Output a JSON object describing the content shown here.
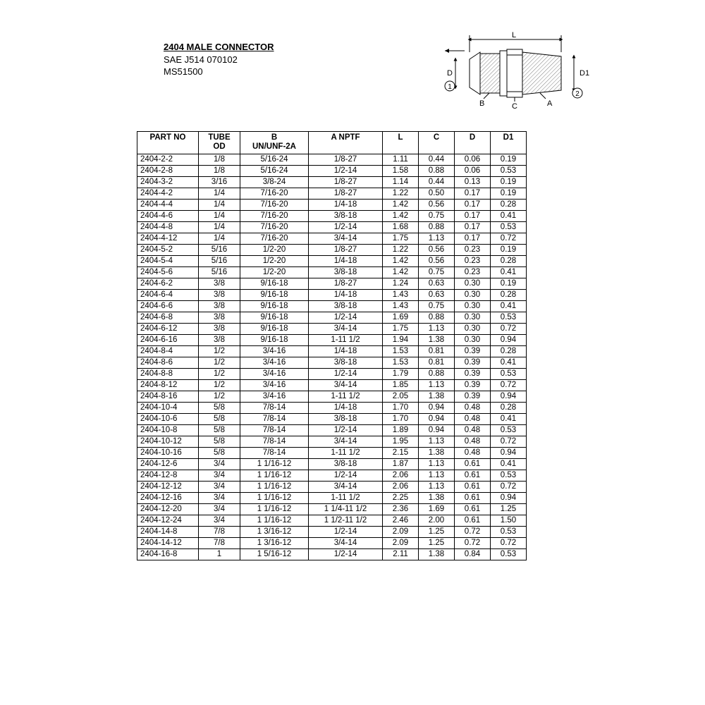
{
  "header": {
    "title": "2404 MALE CONNECTOR",
    "line2": "SAE J514 070102",
    "line3": "MS51500"
  },
  "diagram": {
    "labels": {
      "L": "L",
      "D": "D",
      "D1": "D1",
      "one": "1",
      "two": "2",
      "A": "A",
      "B": "B",
      "C": "C"
    },
    "stroke": "#000000",
    "hatch": "#808080"
  },
  "table": {
    "columns": [
      "PART NO",
      "TUBE\nOD",
      "B\nUN/UNF-2A",
      "A NPTF",
      "L",
      "C",
      "D",
      "D1"
    ],
    "col_align": [
      "left",
      "center",
      "center",
      "center",
      "center",
      "center",
      "center",
      "center"
    ],
    "rows": [
      [
        "2404-2-2",
        "1/8",
        "5/16-24",
        "1/8-27",
        "1.11",
        "0.44",
        "0.06",
        "0.19"
      ],
      [
        "2404-2-8",
        "1/8",
        "5/16-24",
        "1/2-14",
        "1.58",
        "0.88",
        "0.06",
        "0.53"
      ],
      [
        "2404-3-2",
        "3/16",
        "3/8-24",
        "1/8-27",
        "1.14",
        "0.44",
        "0.13",
        "0.19"
      ],
      [
        "2404-4-2",
        "1/4",
        "7/16-20",
        "1/8-27",
        "1.22",
        "0.50",
        "0.17",
        "0.19"
      ],
      [
        "2404-4-4",
        "1/4",
        "7/16-20",
        "1/4-18",
        "1.42",
        "0.56",
        "0.17",
        "0.28"
      ],
      [
        "2404-4-6",
        "1/4",
        "7/16-20",
        "3/8-18",
        "1.42",
        "0.75",
        "0.17",
        "0.41"
      ],
      [
        "2404-4-8",
        "1/4",
        "7/16-20",
        "1/2-14",
        "1.68",
        "0.88",
        "0.17",
        "0.53"
      ],
      [
        "2404-4-12",
        "1/4",
        "7/16-20",
        "3/4-14",
        "1.75",
        "1.13",
        "0.17",
        "0.72"
      ],
      [
        "2404-5-2",
        "5/16",
        "1/2-20",
        "1/8-27",
        "1.22",
        "0.56",
        "0.23",
        "0.19"
      ],
      [
        "2404-5-4",
        "5/16",
        "1/2-20",
        "1/4-18",
        "1.42",
        "0.56",
        "0.23",
        "0.28"
      ],
      [
        "2404-5-6",
        "5/16",
        "1/2-20",
        "3/8-18",
        "1.42",
        "0.75",
        "0.23",
        "0.41"
      ],
      [
        "2404-6-2",
        "3/8",
        "9/16-18",
        "1/8-27",
        "1.24",
        "0.63",
        "0.30",
        "0.19"
      ],
      [
        "2404-6-4",
        "3/8",
        "9/16-18",
        "1/4-18",
        "1.43",
        "0.63",
        "0.30",
        "0.28"
      ],
      [
        "2404-6-6",
        "3/8",
        "9/16-18",
        "3/8-18",
        "1.43",
        "0.75",
        "0.30",
        "0.41"
      ],
      [
        "2404-6-8",
        "3/8",
        "9/16-18",
        "1/2-14",
        "1.69",
        "0.88",
        "0.30",
        "0.53"
      ],
      [
        "2404-6-12",
        "3/8",
        "9/16-18",
        "3/4-14",
        "1.75",
        "1.13",
        "0.30",
        "0.72"
      ],
      [
        "2404-6-16",
        "3/8",
        "9/16-18",
        "1-11 1/2",
        "1.94",
        "1.38",
        "0.30",
        "0.94"
      ],
      [
        "2404-8-4",
        "1/2",
        "3/4-16",
        "1/4-18",
        "1.53",
        "0.81",
        "0.39",
        "0.28"
      ],
      [
        "2404-8-6",
        "1/2",
        "3/4-16",
        "3/8-18",
        "1.53",
        "0.81",
        "0.39",
        "0.41"
      ],
      [
        "2404-8-8",
        "1/2",
        "3/4-16",
        "1/2-14",
        "1.79",
        "0.88",
        "0.39",
        "0.53"
      ],
      [
        "2404-8-12",
        "1/2",
        "3/4-16",
        "3/4-14",
        "1.85",
        "1.13",
        "0.39",
        "0.72"
      ],
      [
        "2404-8-16",
        "1/2",
        "3/4-16",
        "1-11 1/2",
        "2.05",
        "1.38",
        "0.39",
        "0.94"
      ],
      [
        "2404-10-4",
        "5/8",
        "7/8-14",
        "1/4-18",
        "1.70",
        "0.94",
        "0.48",
        "0.28"
      ],
      [
        "2404-10-6",
        "5/8",
        "7/8-14",
        "3/8-18",
        "1.70",
        "0.94",
        "0.48",
        "0.41"
      ],
      [
        "2404-10-8",
        "5/8",
        "7/8-14",
        "1/2-14",
        "1.89",
        "0.94",
        "0.48",
        "0.53"
      ],
      [
        "2404-10-12",
        "5/8",
        "7/8-14",
        "3/4-14",
        "1.95",
        "1.13",
        "0.48",
        "0.72"
      ],
      [
        "2404-10-16",
        "5/8",
        "7/8-14",
        "1-11 1/2",
        "2.15",
        "1.38",
        "0.48",
        "0.94"
      ],
      [
        "2404-12-6",
        "3/4",
        "1 1/16-12",
        "3/8-18",
        "1.87",
        "1.13",
        "0.61",
        "0.41"
      ],
      [
        "2404-12-8",
        "3/4",
        "1 1/16-12",
        "1/2-14",
        "2.06",
        "1.13",
        "0.61",
        "0.53"
      ],
      [
        "2404-12-12",
        "3/4",
        "1 1/16-12",
        "3/4-14",
        "2.06",
        "1.13",
        "0.61",
        "0.72"
      ],
      [
        "2404-12-16",
        "3/4",
        "1 1/16-12",
        "1-11 1/2",
        "2.25",
        "1.38",
        "0.61",
        "0.94"
      ],
      [
        "2404-12-20",
        "3/4",
        "1 1/16-12",
        "1 1/4-11 1/2",
        "2.36",
        "1.69",
        "0.61",
        "1.25"
      ],
      [
        "2404-12-24",
        "3/4",
        "1 1/16-12",
        "1 1/2-11 1/2",
        "2.46",
        "2.00",
        "0.61",
        "1.50"
      ],
      [
        "2404-14-8",
        "7/8",
        "1 3/16-12",
        "1/2-14",
        "2.09",
        "1.25",
        "0.72",
        "0.53"
      ],
      [
        "2404-14-12",
        "7/8",
        "1 3/16-12",
        "3/4-14",
        "2.09",
        "1.25",
        "0.72",
        "0.72"
      ],
      [
        "2404-16-8",
        "1",
        "1 5/16-12",
        "1/2-14",
        "2.11",
        "1.38",
        "0.84",
        "0.53"
      ]
    ]
  }
}
